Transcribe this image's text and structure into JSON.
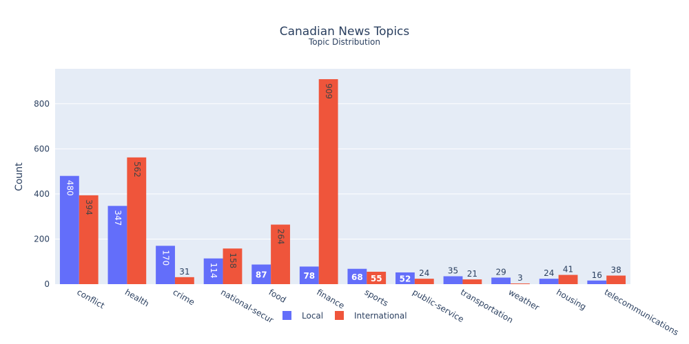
{
  "chart_data": {
    "type": "bar",
    "title": "Canadian News Topics",
    "subtitle": "Topic Distribution",
    "xlabel": "",
    "ylabel": "Count",
    "categories": [
      "conflict",
      "health",
      "crime",
      "national-security",
      "food",
      "finance",
      "sports",
      "public-service",
      "transportation",
      "weather",
      "housing",
      "telecommunications"
    ],
    "series": [
      {
        "name": "Local",
        "color": "#636efa",
        "values": [
          480,
          347,
          170,
          114,
          87,
          78,
          68,
          52,
          35,
          29,
          24,
          16
        ]
      },
      {
        "name": "International",
        "color": "#ef553b",
        "values": [
          394,
          562,
          31,
          158,
          264,
          909,
          55,
          24,
          21,
          3,
          41,
          38
        ]
      }
    ],
    "ylim": [
      0,
      955
    ],
    "yticks": [
      0,
      200,
      400,
      600,
      800
    ],
    "grid": true,
    "legend_position": "bottom-center",
    "plot_background": "#e5ecf6"
  }
}
